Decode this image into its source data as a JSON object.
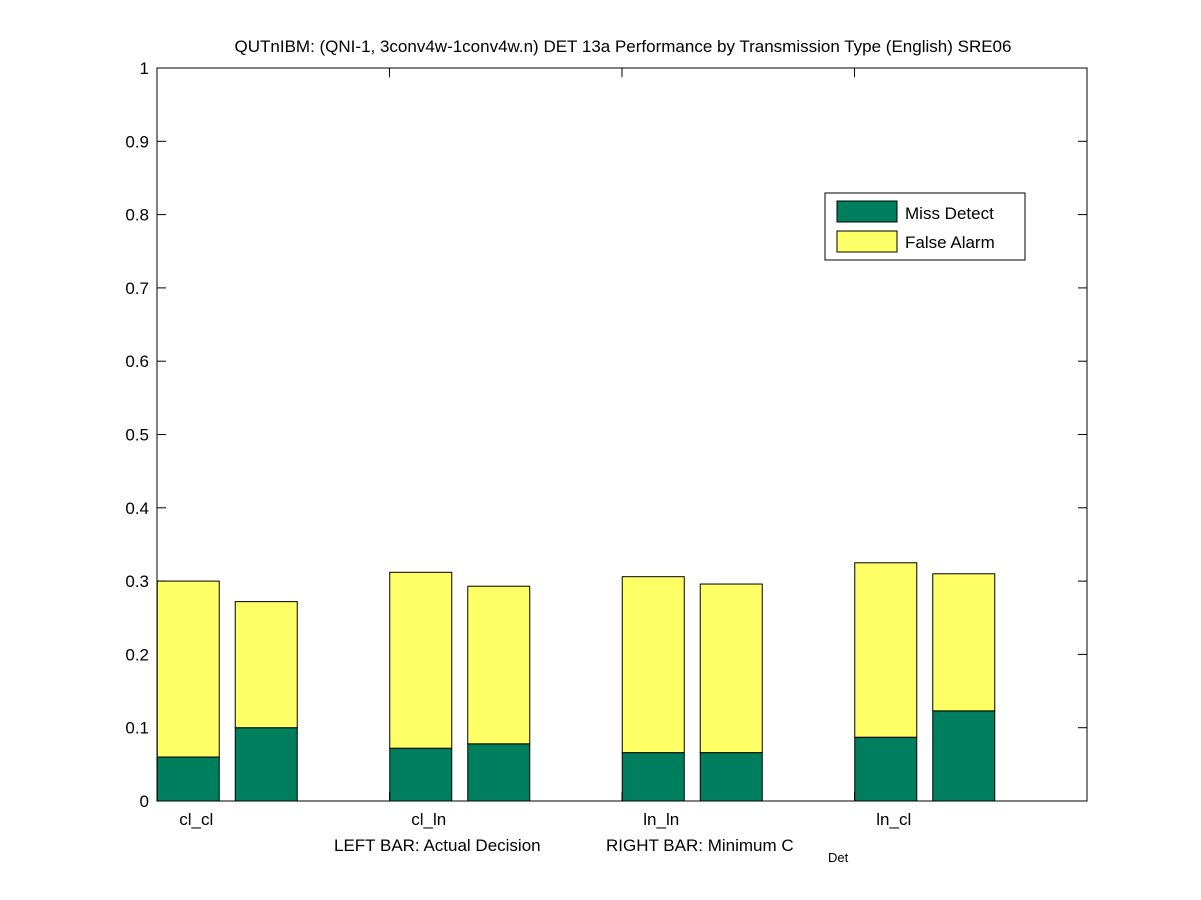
{
  "chart_data": {
    "type": "bar",
    "stacked": true,
    "title": "QUTnIBM: (QNI-1, 3conv4w-1conv4w.n) DET 13a Performance by Transmission Type (English) SRE06",
    "categories": [
      "cl_cl",
      "cl_ln",
      "ln_ln",
      "ln_cl"
    ],
    "ylim": [
      0,
      1
    ],
    "yticks": [
      "0",
      "0.1",
      "0.2",
      "0.3",
      "0.4",
      "0.5",
      "0.6",
      "0.7",
      "0.8",
      "0.9",
      "1"
    ],
    "xlabel": {
      "left": "LEFT BAR: Actual Decision",
      "right_main": "RIGHT BAR: Minimum C",
      "right_sub": "Det"
    },
    "legend": {
      "position": "top-right",
      "entries": [
        "Miss Detect",
        "False Alarm"
      ]
    },
    "colors": {
      "miss": "#007f5f",
      "false_alarm": "#ffff66"
    },
    "series": [
      {
        "name": "Miss Detect",
        "actual": [
          0.06,
          0.072,
          0.066,
          0.087
        ],
        "minimum": [
          0.1,
          0.078,
          0.066,
          0.123
        ]
      },
      {
        "name": "False Alarm",
        "actual": [
          0.24,
          0.24,
          0.24,
          0.238
        ],
        "minimum": [
          0.172,
          0.215,
          0.23,
          0.187
        ]
      }
    ]
  }
}
